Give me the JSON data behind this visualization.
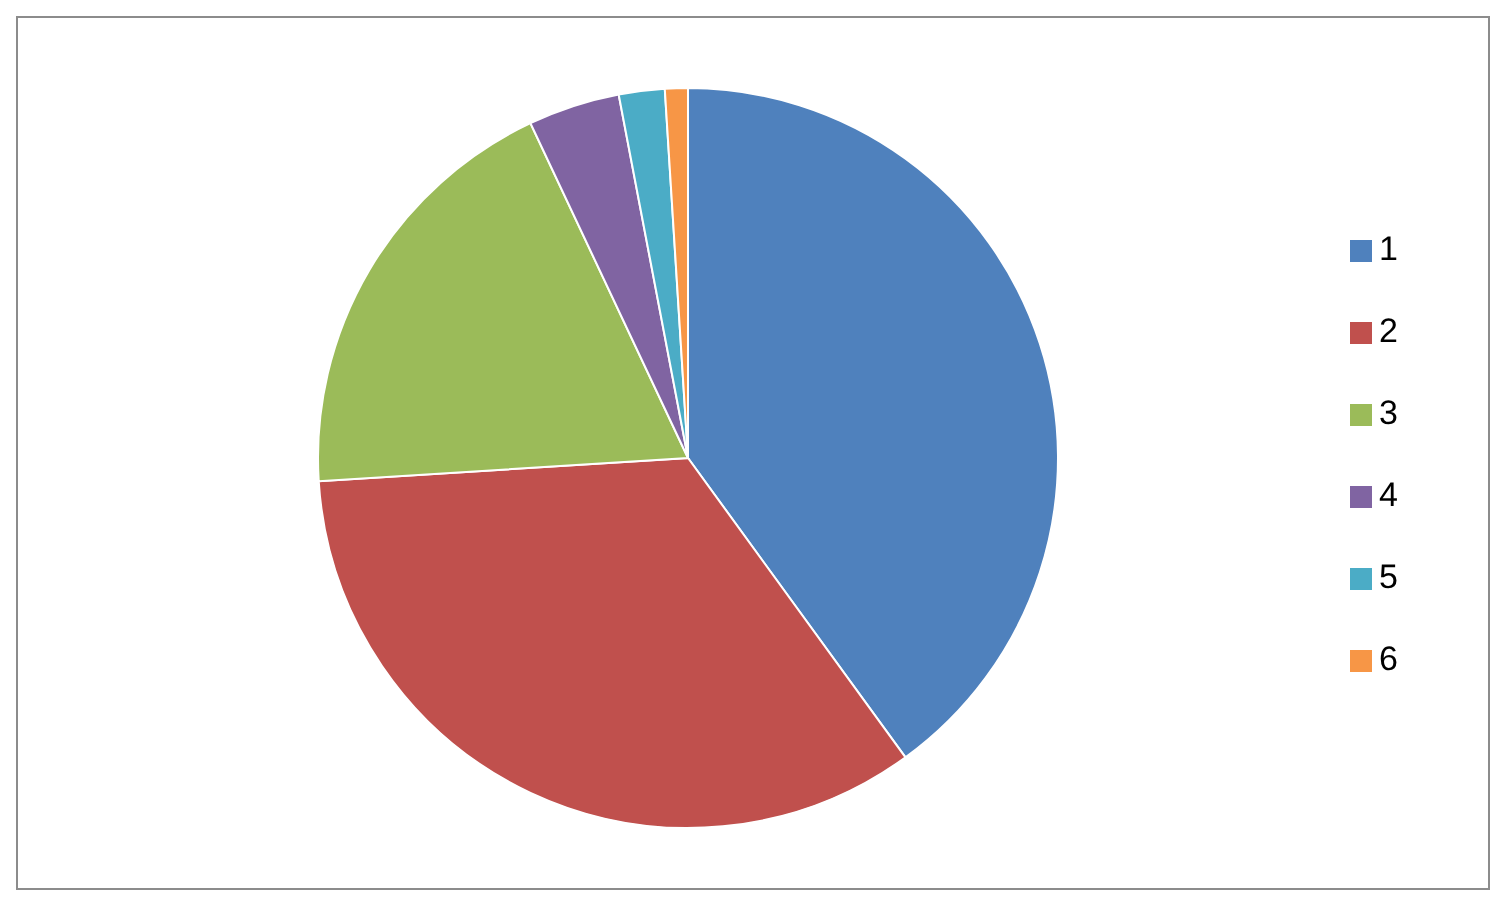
{
  "chart_data": {
    "type": "pie",
    "categories": [
      "1",
      "2",
      "3",
      "4",
      "5",
      "6"
    ],
    "values": [
      40,
      34,
      19,
      4,
      2,
      1
    ],
    "colors": [
      "#4f81bd",
      "#c0504d",
      "#9bbb59",
      "#8064a2",
      "#4bacc6",
      "#f79646"
    ],
    "legend": "right"
  }
}
